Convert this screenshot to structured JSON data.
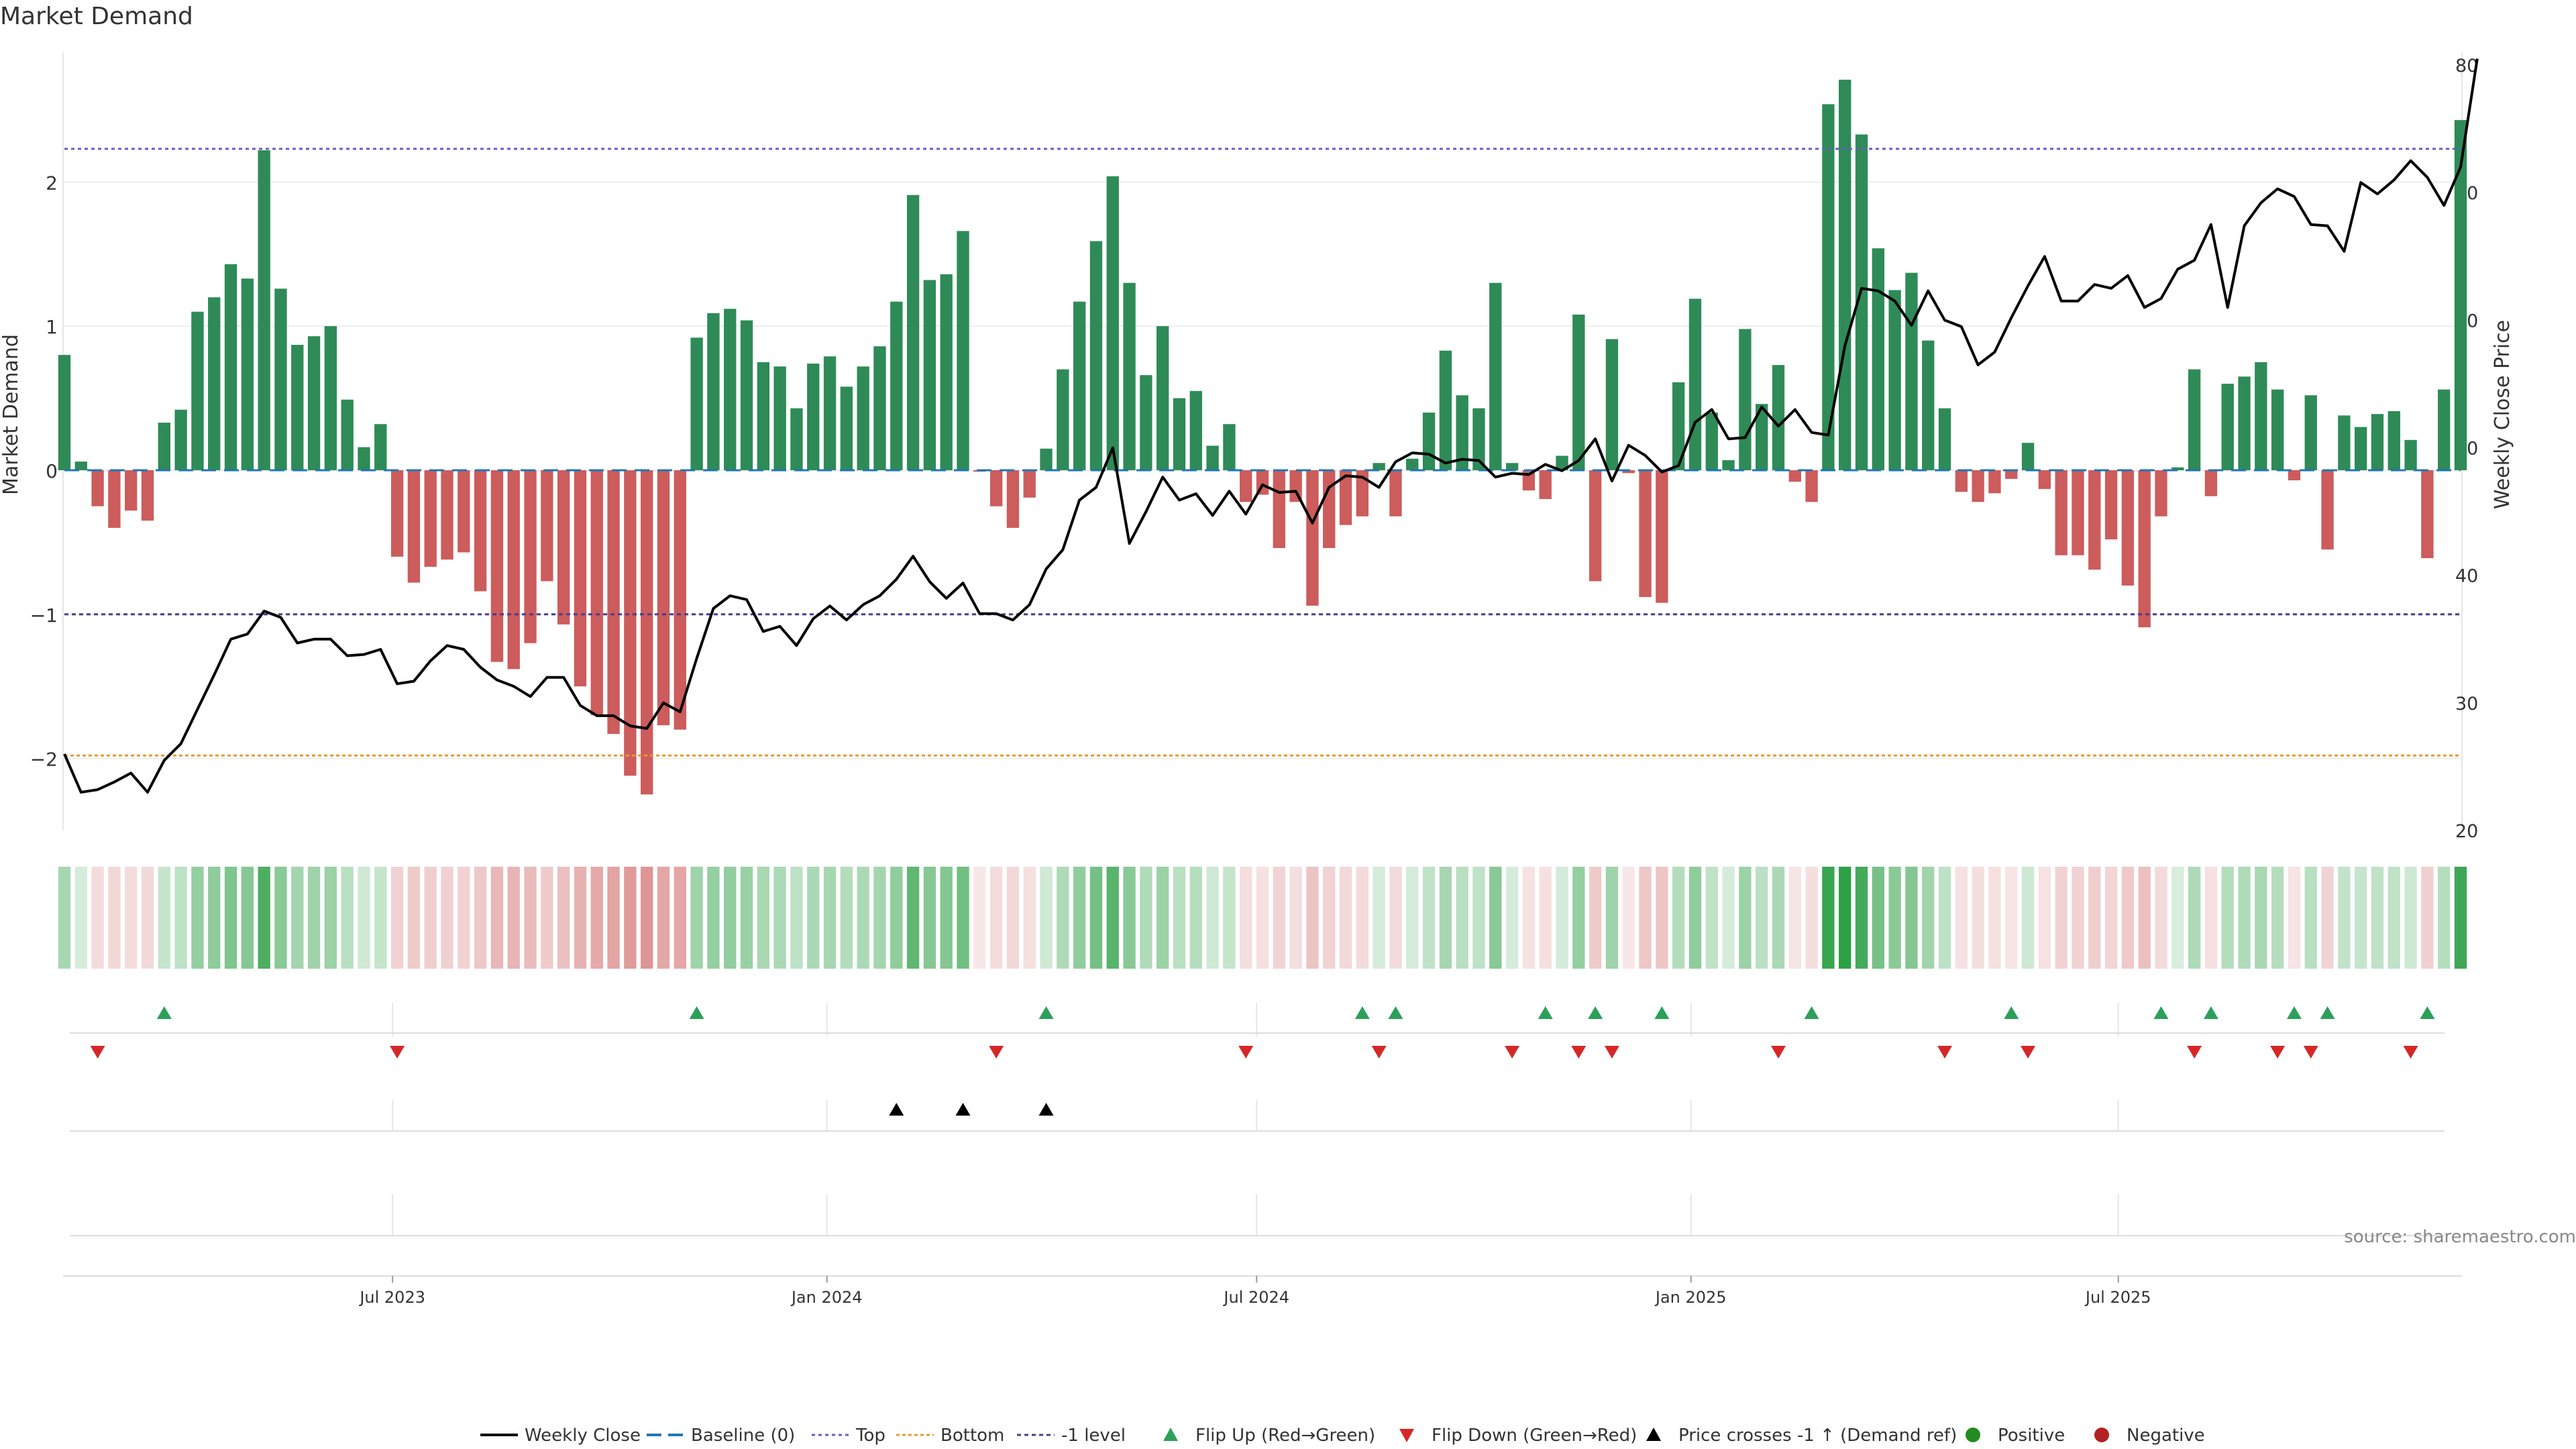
{
  "title": "Market Demand",
  "source": "source: sharemaestro.com",
  "chart_data": {
    "type": "bar",
    "title": "Market Demand",
    "ylabel": "Market Demand",
    "y2label": "Weekly Close Price",
    "ylim": [
      -2.5,
      2.9
    ],
    "y2lim": [
      20,
      81
    ],
    "yticks": [
      -2,
      -1,
      0,
      1,
      2
    ],
    "yticklabels": [
      "−2",
      "−1",
      "0",
      "1",
      "2"
    ],
    "y2ticks": [
      20,
      30,
      40,
      50,
      60,
      70,
      80
    ],
    "y2ticklabels": [
      "20",
      "30",
      "40",
      "50",
      "60",
      "70",
      "80"
    ],
    "x_start": "2023-02-12",
    "x_end": "2025-11-23",
    "xticks": [
      "2023-07-01",
      "2024-01-01",
      "2024-07-01",
      "2025-01-01",
      "2025-07-01"
    ],
    "xticklabels": [
      "Jul 2023",
      "Jan 2024",
      "Jul 2024",
      "Jan 2025",
      "Jul 2025"
    ],
    "reference_lines": {
      "top": 2.23,
      "bottom": -1.98,
      "minus_one": -1.0,
      "baseline": 0
    },
    "demand": [
      0.8,
      0.06,
      -0.25,
      -0.4,
      -0.28,
      -0.35,
      0.33,
      0.42,
      1.1,
      1.2,
      1.43,
      1.33,
      2.22,
      1.26,
      0.87,
      0.93,
      1.0,
      0.49,
      0.16,
      0.32,
      -0.6,
      -0.78,
      -0.67,
      -0.62,
      -0.57,
      -0.84,
      -1.33,
      -1.38,
      -1.2,
      -0.77,
      -1.07,
      -1.5,
      -1.7,
      -1.83,
      -2.12,
      -2.25,
      -1.77,
      -1.8,
      0.92,
      1.09,
      1.12,
      1.04,
      0.75,
      0.72,
      0.43,
      0.74,
      0.79,
      0.58,
      0.72,
      0.86,
      1.17,
      1.91,
      1.32,
      1.36,
      1.66,
      -0.01,
      -0.25,
      -0.4,
      -0.19,
      0.15,
      0.7,
      1.17,
      1.59,
      2.04,
      1.3,
      0.66,
      1.0,
      0.5,
      0.55,
      0.17,
      0.32,
      -0.22,
      -0.17,
      -0.54,
      -0.22,
      -0.94,
      -0.54,
      -0.38,
      -0.32,
      0.05,
      -0.32,
      0.08,
      0.4,
      0.83,
      0.52,
      0.43,
      1.3,
      0.05,
      -0.14,
      -0.2,
      0.1,
      1.08,
      -0.77,
      0.91,
      -0.02,
      -0.88,
      -0.92,
      0.61,
      1.19,
      0.4,
      0.07,
      0.98,
      0.46,
      0.73,
      -0.08,
      -0.22,
      2.54,
      2.71,
      2.33,
      1.54,
      1.25,
      1.37,
      0.9,
      0.43,
      -0.15,
      -0.22,
      -0.16,
      -0.06,
      0.19,
      -0.13,
      -0.59,
      -0.59,
      -0.69,
      -0.48,
      -0.8,
      -1.09,
      -0.32,
      0.02,
      0.7,
      -0.18,
      0.6,
      0.65,
      0.75,
      0.56,
      -0.07,
      0.52,
      -0.55,
      0.38,
      0.3,
      0.39,
      0.41,
      0.21,
      -0.61,
      0.56,
      2.43
    ],
    "close": [
      26,
      23,
      23.2,
      23.8,
      24.5,
      23,
      25.5,
      26.8,
      29.5,
      32.2,
      35,
      35.4,
      37.2,
      36.7,
      34.7,
      35,
      35,
      33.7,
      33.8,
      34.2,
      31.5,
      31.7,
      33.3,
      34.5,
      34.2,
      32.8,
      31.8,
      31.3,
      30.5,
      32,
      32,
      29.8,
      29,
      29,
      28.2,
      28,
      30,
      29.3,
      33.5,
      37.4,
      38.4,
      38.1,
      35.6,
      36,
      34.5,
      36.6,
      37.6,
      36.5,
      37.7,
      38.4,
      39.7,
      41.5,
      39.5,
      38.2,
      39.4,
      37,
      37,
      36.5,
      37.7,
      40.5,
      42,
      45.9,
      46.9,
      50,
      42.5,
      45,
      47.7,
      45.9,
      46.4,
      44.7,
      46.6,
      44.8,
      47.1,
      46.5,
      46.6,
      44.1,
      46.9,
      47.8,
      47.7,
      46.9,
      48.9,
      49.6,
      49.5,
      48.8,
      49.1,
      49,
      47.7,
      48,
      47.9,
      48.7,
      48.2,
      49,
      50.7,
      47.4,
      50.2,
      49.4,
      48.1,
      48.6,
      52,
      53,
      50.7,
      50.8,
      53.2,
      51.7,
      53,
      51.2,
      51,
      58,
      62.5,
      62.3,
      61.5,
      59.6,
      62.3,
      60,
      59.5,
      56.5,
      57.5,
      60.2,
      62.7,
      65,
      61.5,
      61.5,
      62.8,
      62.5,
      63.5,
      61,
      61.7,
      64,
      64.7,
      67.5,
      61,
      67.4,
      69.2,
      70.3,
      69.7,
      67.5,
      67.4,
      65.4,
      70.8,
      69.9,
      71,
      72.5,
      71.2,
      69,
      72,
      80.5
    ],
    "flip_up_weeks": [
      6,
      38,
      59,
      78,
      80,
      89,
      92,
      96,
      105,
      117,
      126,
      129,
      134,
      136,
      142
    ],
    "flip_down_weeks": [
      2,
      20,
      56,
      71,
      79,
      87,
      91,
      93,
      103,
      113,
      118,
      128,
      133,
      135,
      141
    ],
    "price_cross_weeks": [
      50,
      54,
      59
    ]
  },
  "legend": [
    {
      "label": "Weekly Close"
    },
    {
      "label": "Baseline (0)"
    },
    {
      "label": "Top"
    },
    {
      "label": "Bottom"
    },
    {
      "label": "-1 level"
    },
    {
      "label": "Flip Up (Red→Green)"
    },
    {
      "label": "Flip Down (Green→Red)"
    },
    {
      "label": "Price crosses -1 ↑ (Demand ref)"
    },
    {
      "label": "Positive"
    },
    {
      "label": "Negative"
    }
  ],
  "colors": {
    "positive": "#2e8b57",
    "negative": "#cd5c5c",
    "close": "#000000",
    "baseline": "#1f77b4",
    "top": "#6a5acd",
    "bottom": "#e69b2a",
    "minus_one": "#483d8b",
    "flip_up": "#2ca05a",
    "flip_down": "#d62728",
    "price_cross": "#000000",
    "legend_positive": "#228b22",
    "legend_negative": "#b22222"
  }
}
